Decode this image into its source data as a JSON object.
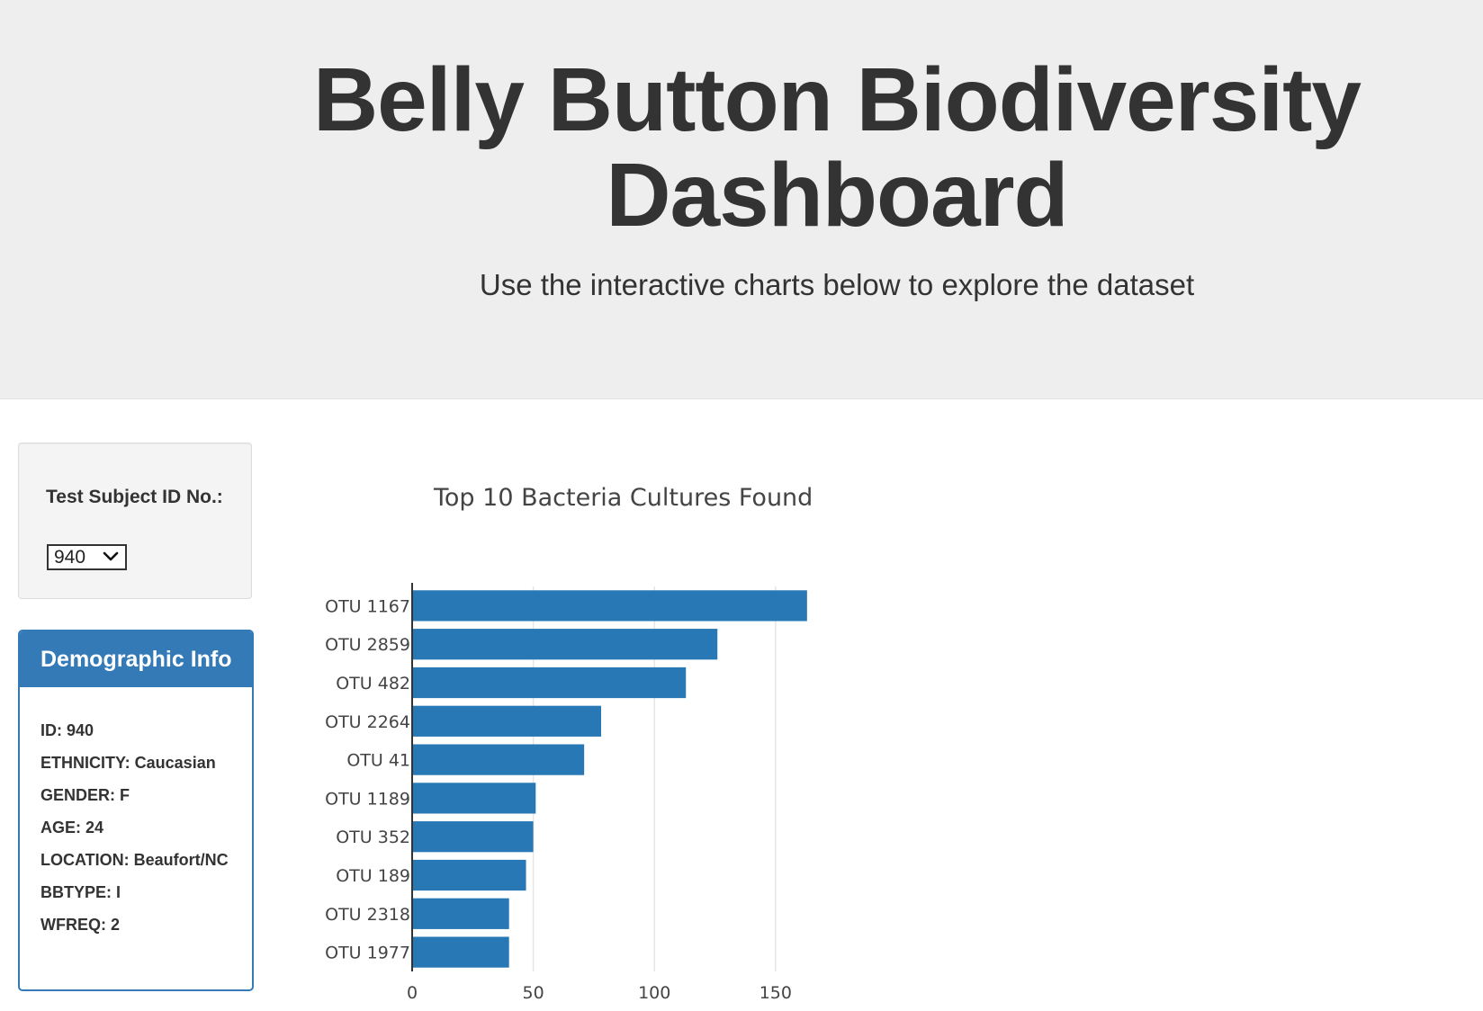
{
  "header": {
    "title_line1": "Belly Button Biodiversity",
    "title_line2": "Dashboard",
    "subtitle": "Use the interactive charts below to explore the dataset"
  },
  "selector": {
    "label": "Test Subject ID No.:",
    "selected_value": "940"
  },
  "demographics": {
    "heading": "Demographic Info",
    "items": [
      "ID: 940",
      "ETHNICITY: Caucasian",
      "GENDER: F",
      "AGE: 24",
      "LOCATION: Beaufort/NC",
      "BBTYPE: I",
      "WFREQ: 2"
    ]
  },
  "colors": {
    "bar": "#2878b5",
    "panel": "#337ab7",
    "jumbotron": "#eeeeee"
  },
  "chart_data": {
    "type": "bar",
    "orientation": "horizontal",
    "title": "Top 10 Bacteria Cultures Found",
    "categories": [
      "OTU 1167",
      "OTU 2859",
      "OTU 482",
      "OTU 2264",
      "OTU 41",
      "OTU 1189",
      "OTU 352",
      "OTU 189",
      "OTU 2318",
      "OTU 1977"
    ],
    "values": [
      163,
      126,
      113,
      78,
      71,
      51,
      50,
      47,
      40,
      40
    ],
    "xticks": [
      0,
      50,
      100,
      150
    ],
    "xlim": [
      0,
      171.6
    ],
    "xlabel": "",
    "ylabel": "",
    "grid": true
  }
}
